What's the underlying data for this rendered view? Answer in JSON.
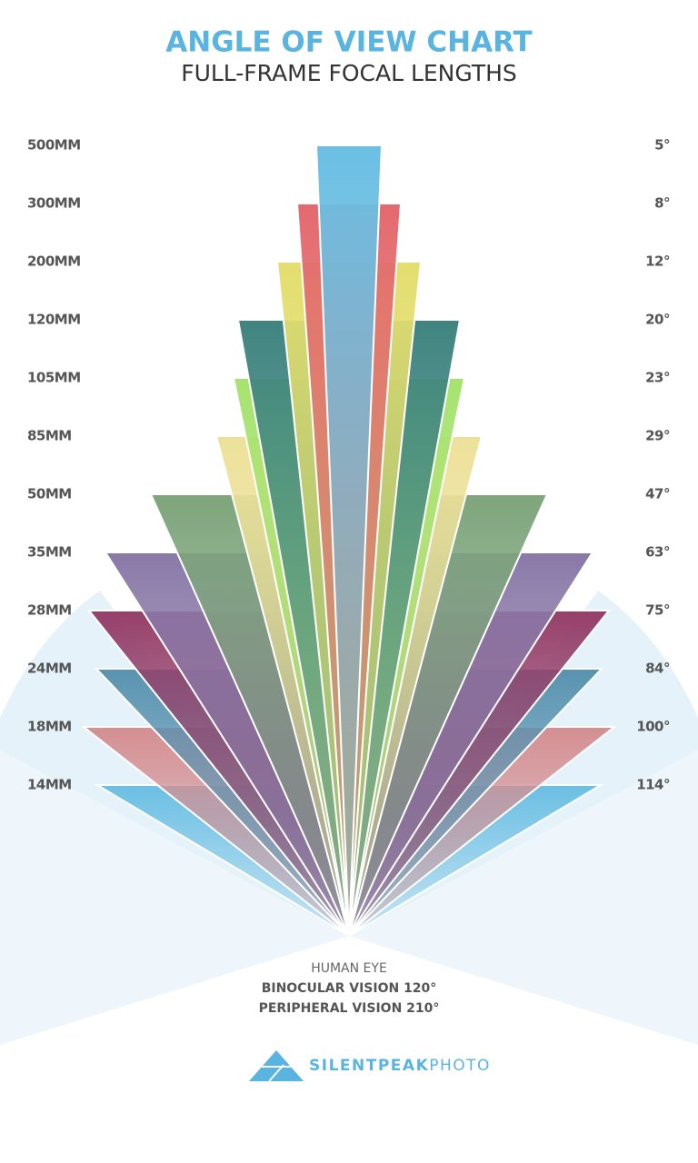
{
  "header": {
    "title": "ANGLE OF VIEW CHART",
    "subtitle": "FULL-FRAME FOCAL LENGTHS"
  },
  "lenses": [
    {
      "focal": "500MM",
      "angle": "5°",
      "color": "#6bbfe3"
    },
    {
      "focal": "300MM",
      "angle": "8°",
      "color": "#e36a6e"
    },
    {
      "focal": "200MM",
      "angle": "12°",
      "color": "#e3de6e"
    },
    {
      "focal": "120MM",
      "angle": "20°",
      "color": "#3f8480"
    },
    {
      "focal": "105MM",
      "angle": "23°",
      "color": "#a5e36e"
    },
    {
      "focal": "85MM",
      "angle": "29°",
      "color": "#ede19a"
    },
    {
      "focal": "50MM",
      "angle": "47°",
      "color": "#7ea57c"
    },
    {
      "focal": "35MM",
      "angle": "63°",
      "color": "#8a79a8"
    },
    {
      "focal": "28MM",
      "angle": "75°",
      "color": "#95406a"
    },
    {
      "focal": "24MM",
      "angle": "84°",
      "color": "#5993b0"
    },
    {
      "focal": "18MM",
      "angle": "100°",
      "color": "#d48f92"
    },
    {
      "focal": "14MM",
      "angle": "114°",
      "color": "#6bbfe3"
    }
  ],
  "eye": {
    "title": "HUMAN EYE",
    "binocular": "BINOCULAR VISION 120°",
    "peripheral": "PERIPHERAL VISION 210°"
  },
  "logo": {
    "brand": "SILENTPEAK",
    "suffix": "PHOTO"
  }
}
